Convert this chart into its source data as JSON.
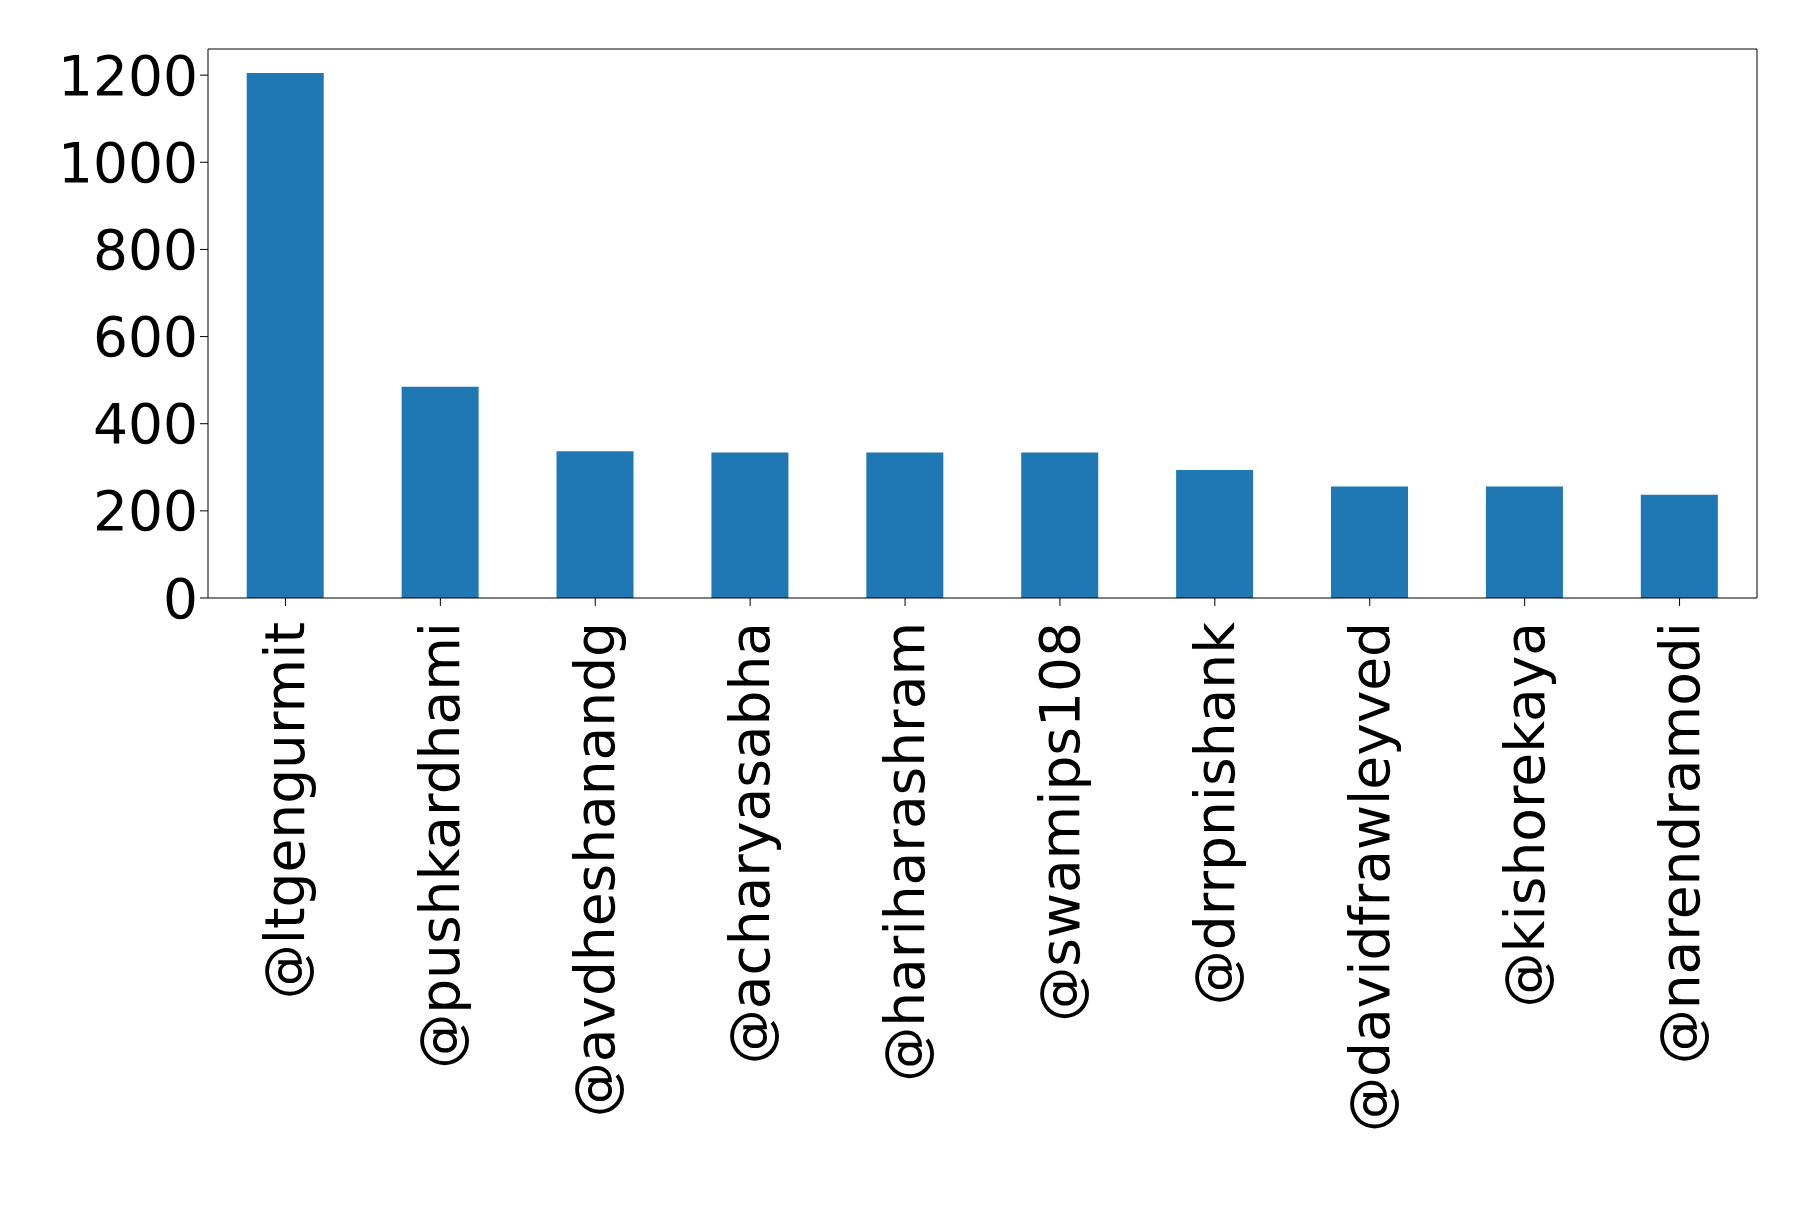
{
  "chart_data": {
    "type": "bar",
    "categories": [
      "@ltgengurmit",
      "@pushkardhami",
      "@avdheshanandg",
      "@acharyasabha",
      "@hariharashram",
      "@swamips108",
      "@drrpnishank",
      "@davidfrawleyved",
      "@kishorekaya",
      "@narendramodi"
    ],
    "values": [
      1205,
      485,
      337,
      334,
      334,
      334,
      294,
      256,
      256,
      237
    ],
    "color": "#1f77b4",
    "ylim": [
      0,
      1260
    ],
    "yticks": [
      0,
      200,
      400,
      600,
      800,
      1000,
      1200
    ],
    "grid": false,
    "legend": false
  }
}
